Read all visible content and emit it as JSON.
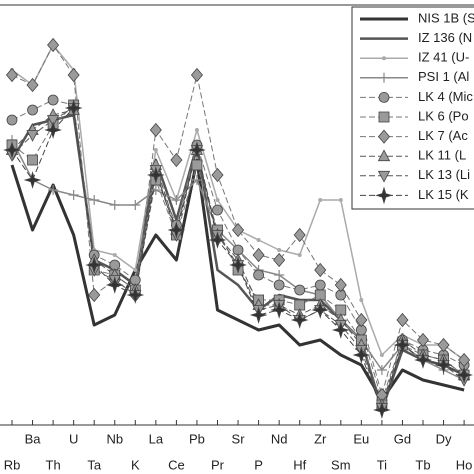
{
  "chart_data": {
    "type": "line",
    "categories": [
      "Rb",
      "Ba",
      "Th",
      "U",
      "Ta",
      "Nb",
      "K",
      "La",
      "Ce",
      "Pb",
      "Pr",
      "Sr",
      "P",
      "Nd",
      "Hf",
      "Zr",
      "Sm",
      "Eu",
      "Ti",
      "Gd",
      "Tb",
      "Dy",
      "Ho"
    ],
    "ylim": [
      0,
      420
    ],
    "legend": "upper right",
    "series": [
      {
        "name": "NIS 1B (S",
        "color": "#333333",
        "width": 3,
        "dash": "solid",
        "marker": "none",
        "values": [
          260,
          195,
          240,
          190,
          100,
          110,
          155,
          190,
          165,
          265,
          115,
          105,
          95,
          100,
          80,
          85,
          70,
          60,
          25,
          55,
          45,
          40,
          35
        ]
      },
      {
        "name": "IZ 136 (N",
        "color": "#555555",
        "width": 2.5,
        "dash": "solid",
        "marker": "none",
        "values": [
          265,
          300,
          305,
          310,
          165,
          155,
          140,
          265,
          205,
          280,
          155,
          140,
          115,
          130,
          125,
          125,
          105,
          85,
          15,
          75,
          65,
          60,
          50
        ]
      },
      {
        "name": "IZ 41 (U-",
        "color": "#aaaaaa",
        "width": 1.5,
        "dash": "solid",
        "marker": "dot",
        "values": [
          355,
          340,
          380,
          355,
          175,
          170,
          155,
          275,
          225,
          295,
          225,
          195,
          185,
          175,
          170,
          225,
          225,
          125,
          70,
          90,
          80,
          80,
          65
        ]
      },
      {
        "name": "PSI 1 (Al",
        "color": "#888888",
        "width": 1.5,
        "dash": "solid",
        "marker": "plus",
        "values": [
          285,
          245,
          235,
          230,
          225,
          220,
          220,
          235,
          225,
          245,
          195,
          175,
          155,
          150,
          135,
          130,
          105,
          85,
          55,
          80,
          65,
          55,
          45
        ]
      },
      {
        "name": "LK 4 (Mic",
        "color": "#777777",
        "width": 1,
        "dash": "dashed",
        "marker": "circle",
        "values": [
          305,
          315,
          325,
          320,
          170,
          160,
          145,
          250,
          200,
          280,
          215,
          175,
          150,
          140,
          135,
          140,
          130,
          95,
          25,
          85,
          75,
          70,
          60
        ]
      },
      {
        "name": "LK 6 (Po",
        "color": "#777777",
        "width": 1,
        "dash": "dashed",
        "marker": "square",
        "values": [
          280,
          265,
          300,
          320,
          155,
          150,
          135,
          245,
          190,
          260,
          195,
          155,
          125,
          125,
          120,
          130,
          115,
          85,
          20,
          80,
          70,
          65,
          50
        ]
      },
      {
        "name": "LK 7 (Ac",
        "color": "#777777",
        "width": 1,
        "dash": "dashed",
        "marker": "diamond",
        "values": [
          350,
          340,
          380,
          350,
          130,
          145,
          130,
          295,
          265,
          350,
          250,
          195,
          170,
          165,
          190,
          155,
          140,
          105,
          30,
          105,
          85,
          80,
          65
        ]
      },
      {
        "name": "LK 11 (L",
        "color": "#555555",
        "width": 1,
        "dash": "dashed",
        "marker": "triangle-up",
        "values": [
          275,
          295,
          310,
          315,
          165,
          150,
          135,
          260,
          195,
          275,
          190,
          165,
          120,
          120,
          110,
          120,
          105,
          80,
          20,
          85,
          70,
          65,
          50
        ]
      },
      {
        "name": "LK 13 (Li",
        "color": "#555555",
        "width": 1,
        "dash": "dashed",
        "marker": "triangle-down",
        "values": [
          270,
          290,
          305,
          317,
          155,
          145,
          130,
          255,
          190,
          275,
          190,
          160,
          115,
          120,
          105,
          115,
          100,
          75,
          17,
          80,
          65,
          60,
          45
        ]
      },
      {
        "name": "LK 15 (K",
        "color": "#444444",
        "width": 1,
        "dash": "dashed",
        "marker": "star",
        "values": [
          275,
          245,
          295,
          317,
          160,
          140,
          130,
          250,
          195,
          275,
          185,
          160,
          110,
          115,
          105,
          115,
          95,
          70,
          15,
          80,
          65,
          60,
          50
        ]
      }
    ]
  }
}
